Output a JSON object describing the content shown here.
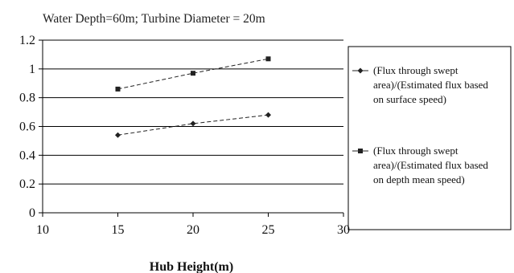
{
  "chart_data": {
    "type": "line",
    "title": "Water Depth=60m; Turbine Diameter = 20m",
    "xlabel": "Hub Height(m)",
    "ylabel": "",
    "xlim": [
      10,
      30
    ],
    "ylim": [
      0,
      1.2
    ],
    "xticks": [
      "10",
      "15",
      "20",
      "25",
      "30"
    ],
    "yticks": [
      "0",
      "0.2",
      "0.4",
      "0.6",
      "0.8",
      "1",
      "1.2"
    ],
    "grid": true,
    "legend_position": "right",
    "series": [
      {
        "legend_lines": [
          "(Flux through swept",
          "area)/(Estimated flux based",
          "on surface speed)"
        ],
        "marker": "diamond",
        "color": "#222222",
        "x": [
          15,
          20,
          25
        ],
        "y": [
          0.54,
          0.62,
          0.68
        ]
      },
      {
        "legend_lines": [
          "(Flux through swept",
          "area)/(Estimated flux based",
          "on depth mean speed)"
        ],
        "marker": "square",
        "color": "#222222",
        "x": [
          15,
          20,
          25
        ],
        "y": [
          0.86,
          0.97,
          1.07
        ]
      }
    ]
  }
}
